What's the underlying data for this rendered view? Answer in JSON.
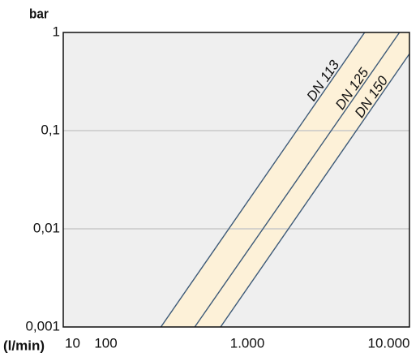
{
  "chart_data": {
    "type": "line",
    "y_label": "bar",
    "x_label": "(l/min)",
    "x_start_label": "10",
    "log_x": true,
    "log_y": true,
    "grid": true,
    "xlim": [
      50,
      14000
    ],
    "xticks": [
      100,
      {
        "value": 1000,
        "label": "1.000"
      },
      {
        "value": 10000,
        "label": "10.000"
      }
    ],
    "ylim": [
      0.001,
      1
    ],
    "yticks": [
      {
        "value": 0.001,
        "label": "0,001"
      },
      {
        "value": 0.01,
        "label": "0,01"
      },
      {
        "value": 0.1,
        "label": "0,1"
      },
      1
    ],
    "band_color": "#fdf1d8",
    "series": [
      {
        "name": "DN 113",
        "color": "#3d5a78",
        "x": [
          245,
          6750
        ],
        "values": [
          0.001,
          1
        ]
      },
      {
        "name": "DN 125",
        "color": "#3d5a78",
        "x": [
          425,
          11900
        ],
        "values": [
          0.001,
          1
        ]
      },
      {
        "name": "DN 150",
        "color": "#3d5a78",
        "x": [
          647,
          17800
        ],
        "values": [
          0.001,
          1
        ]
      }
    ]
  }
}
